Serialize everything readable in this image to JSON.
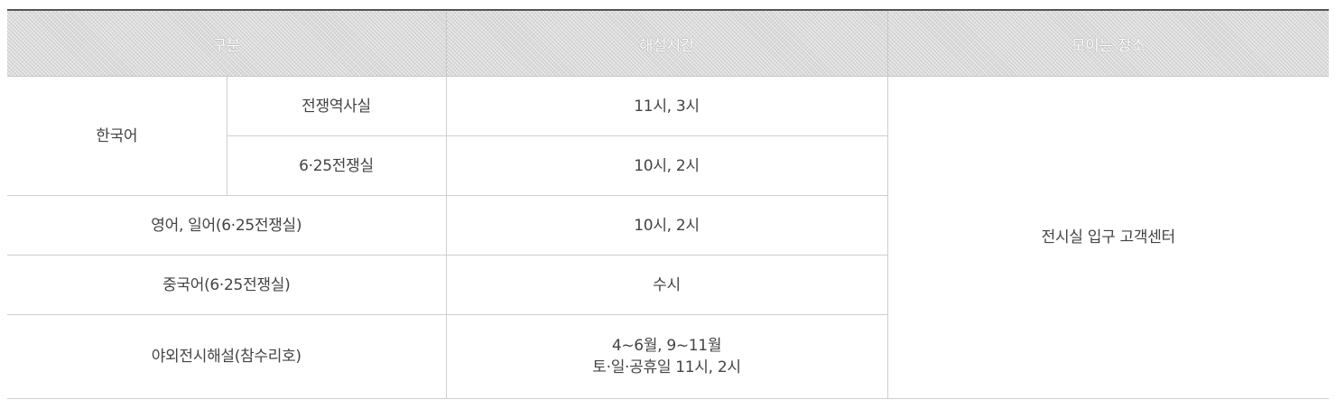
{
  "headers": {
    "category": "구분",
    "time": "해설시간",
    "meeting_place": "모이는 장소"
  },
  "rows": {
    "korean": {
      "language": "한국어",
      "war_history_room": {
        "name": "전쟁역사실",
        "time": "11시, 3시"
      },
      "korean_war_room": {
        "name": "6·25전쟁실",
        "time": "10시, 2시"
      }
    },
    "english_japanese": {
      "label": "영어, 일어(6·25전쟁실)",
      "time": "10시, 2시"
    },
    "chinese": {
      "label": "중국어(6·25전쟁실)",
      "time": "수시"
    },
    "outdoor": {
      "label": "야외전시해설(참수리호)",
      "time_line1": "4~6월, 9~11월",
      "time_line2": "토·일·공휴일 11시, 2시"
    }
  },
  "meeting_place": "전시실 입구 고객센터"
}
